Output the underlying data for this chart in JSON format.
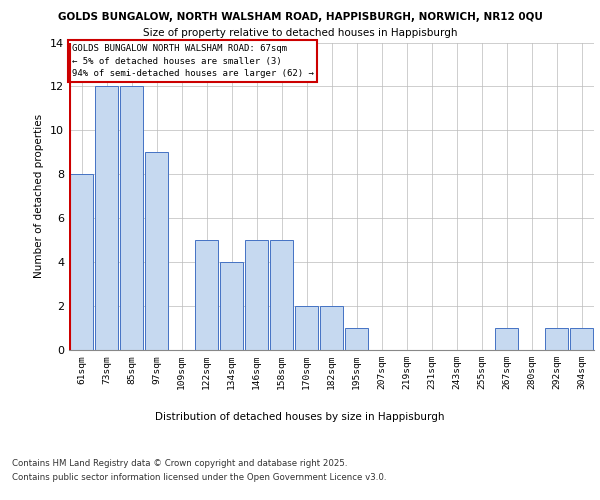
{
  "title_line1": "GOLDS BUNGALOW, NORTH WALSHAM ROAD, HAPPISBURGH, NORWICH, NR12 0QU",
  "title_line2": "Size of property relative to detached houses in Happisburgh",
  "xlabel": "Distribution of detached houses by size in Happisburgh",
  "ylabel": "Number of detached properties",
  "categories": [
    "61sqm",
    "73sqm",
    "85sqm",
    "97sqm",
    "109sqm",
    "122sqm",
    "134sqm",
    "146sqm",
    "158sqm",
    "170sqm",
    "182sqm",
    "195sqm",
    "207sqm",
    "219sqm",
    "231sqm",
    "243sqm",
    "255sqm",
    "267sqm",
    "280sqm",
    "292sqm",
    "304sqm"
  ],
  "values": [
    8,
    12,
    12,
    9,
    0,
    5,
    4,
    5,
    5,
    2,
    2,
    1,
    0,
    0,
    0,
    0,
    0,
    1,
    0,
    1,
    1
  ],
  "bar_color": "#c6d9f0",
  "bar_edge_color": "#4472c4",
  "subject_line_color": "#cc0000",
  "annotation_title": "GOLDS BUNGALOW NORTH WALSHAM ROAD: 67sqm",
  "annotation_line2": "← 5% of detached houses are smaller (3)",
  "annotation_line3": "94% of semi-detached houses are larger (62) →",
  "annotation_box_color": "#cc0000",
  "ylim": [
    0,
    14
  ],
  "yticks": [
    0,
    2,
    4,
    6,
    8,
    10,
    12,
    14
  ],
  "footer_line1": "Contains HM Land Registry data © Crown copyright and database right 2025.",
  "footer_line2": "Contains public sector information licensed under the Open Government Licence v3.0.",
  "bg_color": "#ffffff",
  "grid_color": "#bbbbbb"
}
